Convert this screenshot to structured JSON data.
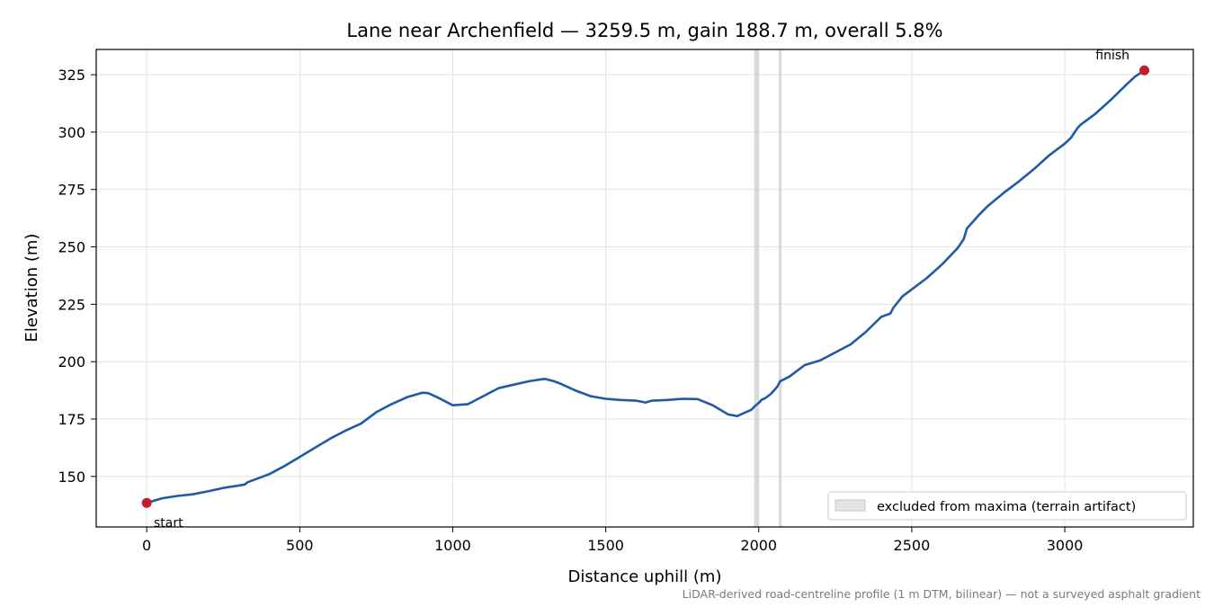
{
  "chart_data": {
    "type": "line",
    "title": "Lane near Archenfield — 3259.5 m, gain 188.7 m, overall 5.8%",
    "xlabel": "Distance uphill (m)",
    "ylabel": "Elevation (m)",
    "xlim": [
      -165,
      3420
    ],
    "ylim": [
      128,
      336
    ],
    "xticks": [
      0,
      500,
      1000,
      1500,
      2000,
      2500,
      3000
    ],
    "yticks": [
      150,
      175,
      200,
      225,
      250,
      275,
      300,
      325
    ],
    "grid": true,
    "line_color": "#1f5aa6",
    "marker_color": "#c1202a",
    "series": [
      {
        "x": [
          0,
          50,
          100,
          150,
          200,
          250,
          300,
          320,
          330,
          400,
          450,
          500,
          550,
          600,
          650,
          700,
          750,
          800,
          850,
          900,
          920,
          950,
          1000,
          1020,
          1050,
          1100,
          1150,
          1200,
          1250,
          1300,
          1330,
          1350,
          1400,
          1450,
          1500,
          1550,
          1600,
          1630,
          1650,
          1700,
          1750,
          1800,
          1850,
          1900,
          1930,
          1950,
          1975,
          1990,
          2000,
          2010,
          2020,
          2030,
          2040,
          2060,
          2070,
          2100,
          2150,
          2200,
          2250,
          2300,
          2350,
          2400,
          2430,
          2440,
          2470,
          2500,
          2550,
          2600,
          2650,
          2670,
          2680,
          2700,
          2720,
          2750,
          2800,
          2850,
          2900,
          2950,
          3000,
          3020,
          3040,
          3050,
          3100,
          3150,
          3200,
          3230,
          3260
        ],
        "y": [
          138.5,
          140.5,
          141.5,
          142.2,
          143.5,
          145,
          146,
          146.5,
          147.5,
          151,
          154.5,
          158.5,
          162.5,
          166.5,
          170,
          173,
          178,
          181.5,
          184.5,
          186.5,
          186.3,
          184.5,
          181,
          181.2,
          181.5,
          185,
          188.5,
          190,
          191.5,
          192.5,
          191.5,
          190.5,
          187.5,
          185,
          183.8,
          183.3,
          183,
          182.2,
          183,
          183.3,
          183.8,
          183.7,
          181,
          177,
          176.3,
          177.5,
          179,
          181,
          182,
          183.5,
          184,
          185,
          186,
          189,
          191.5,
          193.5,
          198.5,
          200.5,
          204,
          207.5,
          213,
          219.5,
          221,
          223.5,
          228.5,
          231.5,
          236.5,
          242.5,
          249.5,
          253.5,
          258,
          261,
          264,
          268,
          273.5,
          278.5,
          284,
          290,
          295,
          297.5,
          301.5,
          303,
          308,
          314,
          320.5,
          324.2,
          326.9
        ]
      }
    ],
    "excluded_ranges": [
      [
        1985,
        2000
      ],
      [
        2065,
        2075
      ]
    ],
    "legend": {
      "label": "excluded from maxima (terrain artifact)",
      "position": "lower-right"
    },
    "annotations": {
      "start_label": "start",
      "finish_label": "finish"
    },
    "footnote": "LiDAR-derived road-centreline profile (1 m DTM, bilinear) — not a surveyed asphalt gradient"
  }
}
